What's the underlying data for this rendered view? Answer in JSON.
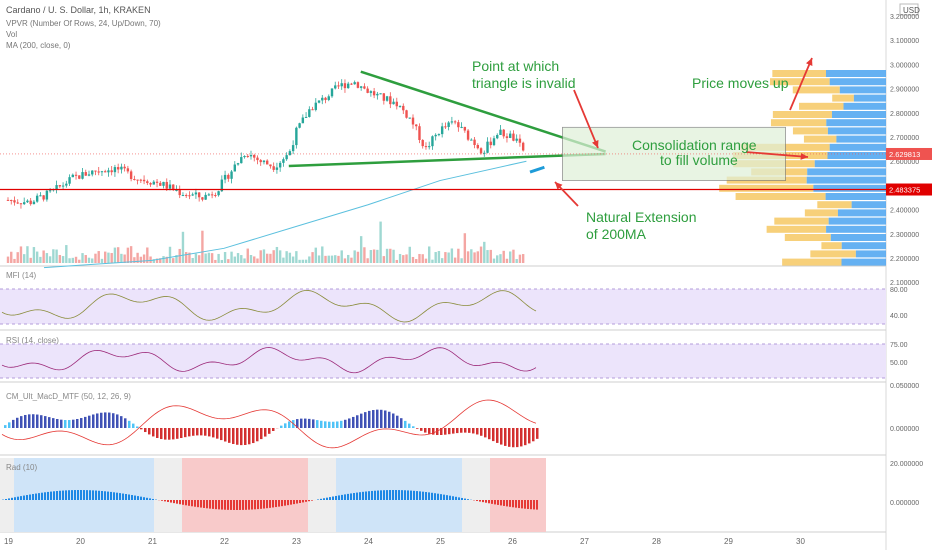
{
  "header": {
    "symbol_line": "Cardano / U. S. Dollar, 1h, KRAKEN",
    "indicators": [
      "VPVR (Number Of Rows, 24, Up/Down, 70)",
      "Vol",
      "MA (200, close, 0)"
    ],
    "currency_badge": "USD"
  },
  "colors": {
    "up": "#26a69a",
    "down": "#ef5350",
    "ma": "#5bc0de",
    "annotation": "#2e9e3e",
    "arrow": "#e53935",
    "vp_up": "#f6c863",
    "vp_down": "#4aa3f0",
    "band": "#ece4fb",
    "mfi_line": "#8a8c3b",
    "rsi_line": "#9c2a7a"
  },
  "axes": {
    "price_ticks": [
      "3.200000",
      "3.100000",
      "3.000000",
      "2.900000",
      "2.800000",
      "2.700000",
      "2.600000",
      "2.400000",
      "2.300000",
      "2.200000",
      "2.100000"
    ],
    "date_ticks": [
      "19",
      "20",
      "21",
      "22",
      "23",
      "24",
      "25",
      "26",
      "27",
      "28",
      "29",
      "30"
    ],
    "last_price": "2.629813",
    "support_price": "2.483375",
    "mfi_ticks": [
      "80.00",
      "40.00"
    ],
    "rsi_ticks": [
      "75.00",
      "50.00"
    ],
    "macd_ticks": [
      "0.050000",
      "0.000000"
    ],
    "last_ticks": [
      "20.000000",
      "0.000000"
    ]
  },
  "panes": {
    "mfi_label": "MFI (14)",
    "rsi_label": "RSI (14, close)",
    "macd_label": "CM_Ult_MacD_MTF (50, 12, 26, 9)",
    "last_label": "Rad (10)"
  },
  "annotations": {
    "triangle_invalid": [
      "Point at which",
      "triangle is invalid"
    ],
    "price_up": "Price moves up",
    "consolidation": [
      "Consolidation range",
      "to fill volume"
    ],
    "ma_extension": [
      "Natural Extension",
      "of 200MA"
    ]
  },
  "chart_data": {
    "type": "candlestick",
    "x_dates": [
      "19",
      "20",
      "21",
      "22",
      "23",
      "24",
      "25",
      "26"
    ],
    "price_path": [
      [
        19.0,
        2.44
      ],
      [
        19.3,
        2.43
      ],
      [
        19.6,
        2.47
      ],
      [
        19.9,
        2.53
      ],
      [
        20.2,
        2.56
      ],
      [
        20.5,
        2.57
      ],
      [
        20.8,
        2.53
      ],
      [
        21.1,
        2.51
      ],
      [
        21.4,
        2.47
      ],
      [
        21.7,
        2.45
      ],
      [
        21.9,
        2.48
      ],
      [
        22.1,
        2.56
      ],
      [
        22.3,
        2.64
      ],
      [
        22.5,
        2.6
      ],
      [
        22.7,
        2.58
      ],
      [
        22.9,
        2.63
      ],
      [
        23.0,
        2.72
      ],
      [
        23.2,
        2.82
      ],
      [
        23.4,
        2.86
      ],
      [
        23.6,
        2.91
      ],
      [
        23.8,
        2.93
      ],
      [
        24.0,
        2.89
      ],
      [
        24.2,
        2.86
      ],
      [
        24.4,
        2.84
      ],
      [
        24.6,
        2.77
      ],
      [
        24.8,
        2.65
      ],
      [
        25.0,
        2.73
      ],
      [
        25.2,
        2.76
      ],
      [
        25.4,
        2.7
      ],
      [
        25.6,
        2.64
      ],
      [
        25.8,
        2.72
      ],
      [
        26.0,
        2.7
      ],
      [
        26.2,
        2.63
      ]
    ],
    "ma200": [
      [
        19.5,
        2.16
      ],
      [
        21.0,
        2.19
      ],
      [
        22.0,
        2.24
      ],
      [
        23.0,
        2.33
      ],
      [
        24.0,
        2.42
      ],
      [
        25.0,
        2.52
      ],
      [
        26.2,
        2.6
      ]
    ],
    "triangle_upper": [
      [
        23.9,
        2.97
      ],
      [
        27.3,
        2.64
      ]
    ],
    "triangle_lower": [
      [
        22.9,
        2.58
      ],
      [
        27.3,
        2.63
      ]
    ],
    "consolidation_range": [
      2.52,
      2.74
    ],
    "support_line": 2.483,
    "last_price": 2.629813,
    "ylim": [
      2.15,
      3.22
    ],
    "volume_profile_bins": 24
  }
}
